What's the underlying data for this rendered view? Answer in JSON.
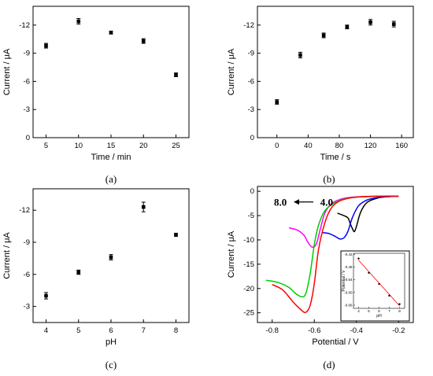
{
  "chart_data": [
    {
      "panel": "a",
      "type": "scatter",
      "caption": "(a)",
      "xlabel": "Time / min",
      "ylabel": "Current / μA",
      "x": [
        5,
        10,
        15,
        20,
        25
      ],
      "y": [
        -9.8,
        -12.4,
        -11.2,
        -10.3,
        -6.7
      ],
      "yerr": [
        0.25,
        0.3,
        0.15,
        0.25,
        0.2
      ],
      "xlim": [
        3,
        27
      ],
      "ylim": [
        0,
        -14
      ],
      "y_axis_inverted": true,
      "xticks": [
        "5",
        "10",
        "15",
        "20",
        "25"
      ],
      "yticks": [
        "0",
        "-3",
        "-6",
        "-9",
        "-12"
      ]
    },
    {
      "panel": "b",
      "type": "scatter",
      "caption": "(b)",
      "xlabel": "Time / s",
      "ylabel": "Current / μA",
      "x": [
        0,
        30,
        60,
        90,
        120,
        150
      ],
      "y": [
        -3.8,
        -8.8,
        -10.9,
        -11.8,
        -12.3,
        -12.1
      ],
      "yerr": [
        0.25,
        0.3,
        0.25,
        0.2,
        0.3,
        0.3
      ],
      "xlim": [
        -25,
        175
      ],
      "ylim": [
        0,
        -14
      ],
      "y_axis_inverted": true,
      "xticks": [
        "0",
        "40",
        "80",
        "120",
        "160"
      ],
      "yticks": [
        "0",
        "-3",
        "-6",
        "-9",
        "-12"
      ]
    },
    {
      "panel": "c",
      "type": "scatter",
      "caption": "(c)",
      "xlabel": "pH",
      "ylabel": "Current / μA",
      "x": [
        4,
        5,
        6,
        7,
        8
      ],
      "y": [
        -4.0,
        -6.2,
        -7.6,
        -12.3,
        -9.7
      ],
      "yerr": [
        0.3,
        0.2,
        0.25,
        0.45,
        0.15
      ],
      "xlim": [
        3.6,
        8.4
      ],
      "ylim": [
        -1.5,
        -14
      ],
      "y_axis_inverted": true,
      "xticks": [
        "4",
        "5",
        "6",
        "7",
        "8"
      ],
      "yticks": [
        "-3",
        "-6",
        "-9",
        "-12"
      ]
    },
    {
      "panel": "d",
      "type": "line",
      "caption": "(d)",
      "xlabel": "Potential / V",
      "ylabel": "Current / μA",
      "xlim": [
        -0.87,
        -0.13
      ],
      "ylim": [
        -27,
        1
      ],
      "xticks": [
        "-0.8",
        "-0.6",
        "-0.4",
        "-0.2"
      ],
      "yticks": [
        "0",
        "-5",
        "-10",
        "-15",
        "-20",
        "-25"
      ],
      "arrow_from_label": "4.0",
      "arrow_to_label": "8.0",
      "series": [
        {
          "color": "#000000",
          "points": [
            [
              -0.49,
              -4.5
            ],
            [
              -0.46,
              -5.0
            ],
            [
              -0.44,
              -5.5
            ],
            [
              -0.43,
              -6.6
            ],
            [
              -0.42,
              -7.6
            ],
            [
              -0.41,
              -8.3
            ],
            [
              -0.4,
              -7.2
            ],
            [
              -0.38,
              -4.3
            ],
            [
              -0.35,
              -2.3
            ],
            [
              -0.3,
              -1.4
            ],
            [
              -0.25,
              -1.1
            ],
            [
              -0.2,
              -1.0
            ]
          ]
        },
        {
          "color": "#0000ff",
          "points": [
            [
              -0.56,
              -8.5
            ],
            [
              -0.53,
              -8.7
            ],
            [
              -0.5,
              -9.3
            ],
            [
              -0.48,
              -9.8
            ],
            [
              -0.46,
              -9.6
            ],
            [
              -0.44,
              -8.2
            ],
            [
              -0.42,
              -5.5
            ],
            [
              -0.39,
              -3.0
            ],
            [
              -0.35,
              -1.8
            ],
            [
              -0.3,
              -1.3
            ],
            [
              -0.25,
              -1.1
            ],
            [
              -0.2,
              -1.0
            ]
          ]
        },
        {
          "color": "#ff00ff",
          "points": [
            [
              -0.72,
              -7.5
            ],
            [
              -0.68,
              -8.0
            ],
            [
              -0.65,
              -9.0
            ],
            [
              -0.63,
              -10.5
            ],
            [
              -0.61,
              -11.5
            ],
            [
              -0.59,
              -10.8
            ],
            [
              -0.57,
              -7.5
            ],
            [
              -0.55,
              -4.5
            ],
            [
              -0.52,
              -2.6
            ],
            [
              -0.48,
              -1.7
            ],
            [
              -0.44,
              -1.3
            ],
            [
              -0.38,
              -1.1
            ],
            [
              -0.3,
              -1.0
            ],
            [
              -0.2,
              -1.0
            ]
          ]
        },
        {
          "color": "#00cc00",
          "points": [
            [
              -0.83,
              -18.3
            ],
            [
              -0.77,
              -18.8
            ],
            [
              -0.72,
              -19.8
            ],
            [
              -0.69,
              -21.0
            ],
            [
              -0.66,
              -21.7
            ],
            [
              -0.64,
              -21.0
            ],
            [
              -0.62,
              -17.0
            ],
            [
              -0.6,
              -11.0
            ],
            [
              -0.58,
              -7.0
            ],
            [
              -0.55,
              -4.0
            ],
            [
              -0.5,
              -2.3
            ],
            [
              -0.45,
              -1.5
            ],
            [
              -0.4,
              -1.2
            ],
            [
              -0.3,
              -1.0
            ],
            [
              -0.2,
              -1.0
            ]
          ]
        },
        {
          "color": "#ff0000",
          "points": [
            [
              -0.8,
              -19.2
            ],
            [
              -0.75,
              -20.3
            ],
            [
              -0.7,
              -22.8
            ],
            [
              -0.66,
              -24.5
            ],
            [
              -0.64,
              -24.9
            ],
            [
              -0.62,
              -23.5
            ],
            [
              -0.6,
              -19.0
            ],
            [
              -0.58,
              -12.0
            ],
            [
              -0.55,
              -6.5
            ],
            [
              -0.52,
              -3.5
            ],
            [
              -0.48,
              -2.0
            ],
            [
              -0.42,
              -1.3
            ],
            [
              -0.35,
              -1.1
            ],
            [
              -0.25,
              -1.0
            ],
            [
              -0.2,
              -1.0
            ]
          ]
        }
      ],
      "inset": {
        "type": "scatter",
        "xlabel": "pH",
        "ylabel": "Potential / V",
        "x": [
          4,
          5,
          6,
          7,
          8
        ],
        "y": [
          -0.44,
          -0.507,
          -0.56,
          -0.615,
          -0.655
        ],
        "fit_color": "#ff0000",
        "xlim": [
          3.5,
          8.5
        ],
        "ylim": [
          -0.415,
          -0.675
        ],
        "xticks": [
          "4",
          "5",
          "6",
          "7",
          "8"
        ],
        "yticks": [
          "-0.42",
          "-0.48",
          "-0.54",
          "-0.60",
          "-0.66"
        ]
      }
    }
  ]
}
